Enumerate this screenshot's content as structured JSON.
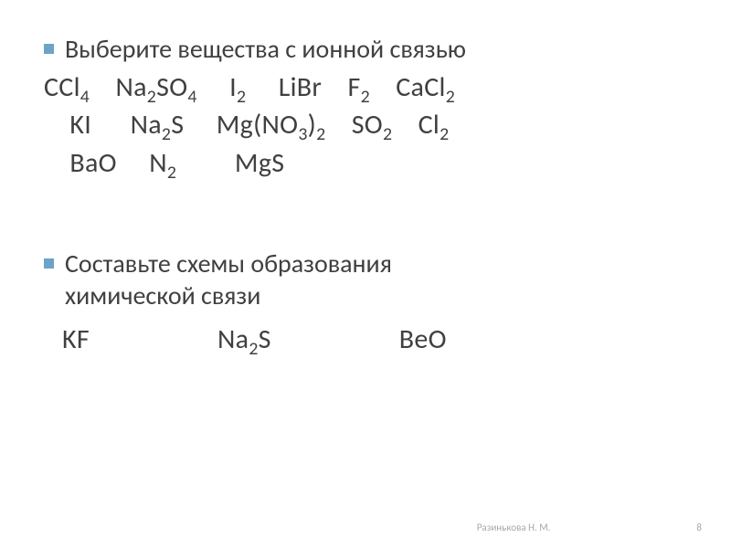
{
  "slide": {
    "bullet1_text": "Выберите вещества с ионной связью",
    "formulas_line1_parts": [
      {
        "t": "CCl",
        "s": "4"
      },
      {
        "t": "    Na",
        "s": "2"
      },
      {
        "t": "SO",
        "s": "4"
      },
      {
        "t": "     I",
        "s": "2"
      },
      {
        "t": "     LiBr    F",
        "s": "2"
      },
      {
        "t": "    CaCl",
        "s": "2"
      }
    ],
    "formulas_line2_parts": [
      {
        "t": "    KI      Na",
        "s": "2"
      },
      {
        "t": "S     Mg(NO",
        "s": "3"
      },
      {
        "t": ")",
        "s": "2"
      },
      {
        "t": "    SO",
        "s": "2"
      },
      {
        "t": "    Cl",
        "s": "2"
      }
    ],
    "formulas_line3_parts": [
      {
        "t": "    BaO     N",
        "s": "2"
      },
      {
        "t": "         MgS",
        "s": ""
      }
    ],
    "bullet2_line1": "Составьте схемы образования",
    "bullet2_line2": "химической связи",
    "answers": {
      "a1": "KF",
      "a2_parts": [
        {
          "t": "Na",
          "s": "2"
        },
        {
          "t": "S",
          "s": ""
        }
      ],
      "a3": "BeO"
    }
  },
  "footer": {
    "author": "Разинькова Н. М.",
    "page": "8"
  },
  "style": {
    "bullet_color": "#6ba3c9",
    "text_color": "#404040",
    "bg": "#ffffff",
    "footer_color": "#a8a8a8",
    "body_fontsize": 28,
    "formula_fontsize": 30,
    "footer_fontsize": 11
  }
}
